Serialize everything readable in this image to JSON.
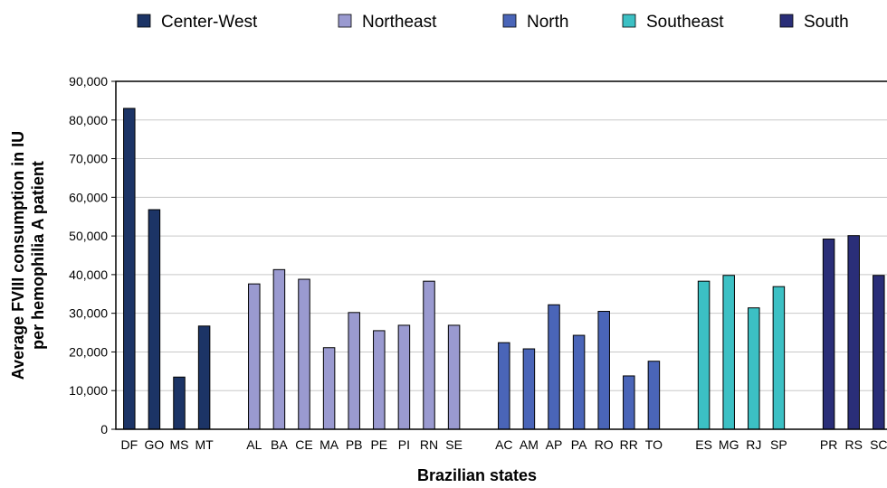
{
  "chart_data": {
    "type": "bar",
    "xlabel": "Brazilian states",
    "ylabel": [
      "Average FVIII consumption in IU",
      "per hemophilia A patient"
    ],
    "ylim": [
      0,
      90000
    ],
    "yticks": [
      "0",
      "10,000",
      "20,000",
      "30,000",
      "40,000",
      "50,000",
      "60,000",
      "70,000",
      "80,000",
      "90,000"
    ],
    "grid": true,
    "legend_position": "top",
    "series": [
      {
        "name": "Center-West",
        "color": "#1c3466",
        "categories": [
          "DF",
          "GO",
          "MS",
          "MT"
        ],
        "values": [
          83000,
          56800,
          13500,
          26700
        ]
      },
      {
        "name": "Northeast",
        "color": "#9a9ad0",
        "categories": [
          "AL",
          "BA",
          "CE",
          "MA",
          "PB",
          "PE",
          "PI",
          "RN",
          "SE"
        ],
        "values": [
          37600,
          41300,
          38800,
          21100,
          30200,
          25500,
          26900,
          38300,
          26900
        ]
      },
      {
        "name": "North",
        "color": "#4a65b8",
        "categories": [
          "AC",
          "AM",
          "AP",
          "PA",
          "RO",
          "RR",
          "TO"
        ],
        "values": [
          22400,
          20800,
          32200,
          24300,
          30500,
          13800,
          17600
        ]
      },
      {
        "name": "Southeast",
        "color": "#3cc0c4",
        "categories": [
          "ES",
          "MG",
          "RJ",
          "SP"
        ],
        "values": [
          38300,
          39800,
          31400,
          36900
        ]
      },
      {
        "name": "South",
        "color": "#2a2e78",
        "categories": [
          "PR",
          "RS",
          "SC"
        ],
        "values": [
          49200,
          50100,
          39800
        ]
      }
    ]
  }
}
